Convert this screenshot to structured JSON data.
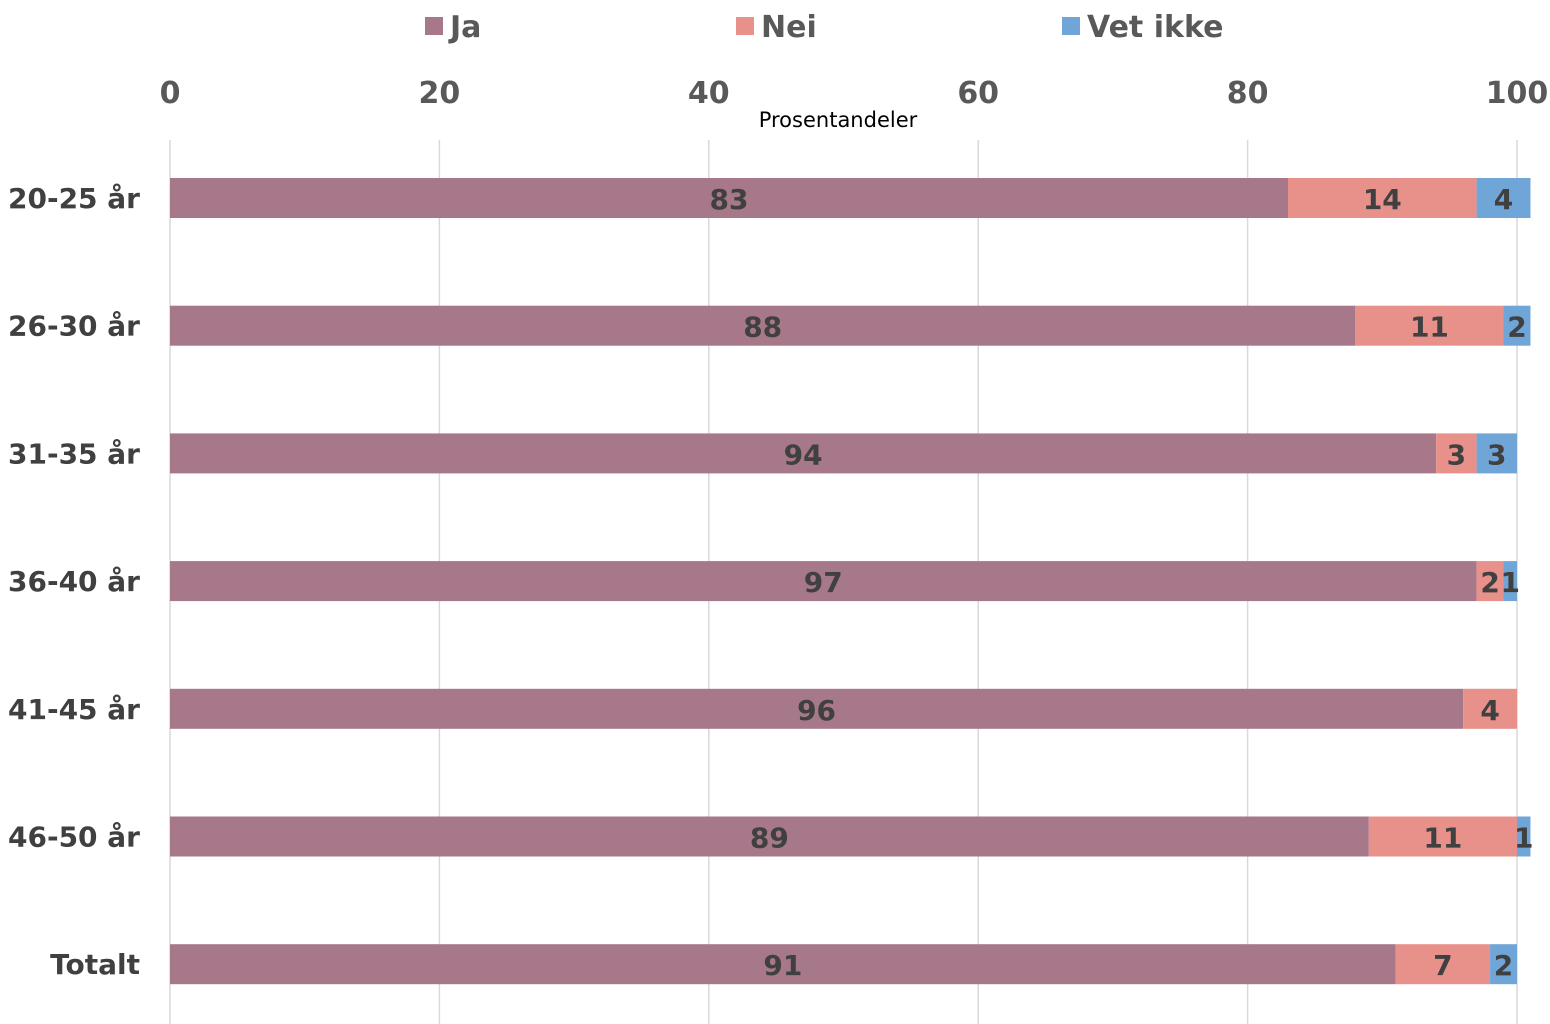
{
  "chart_data": {
    "type": "bar",
    "orientation": "horizontal",
    "stacked": true,
    "categories": [
      "20-25 år",
      "26-30 år",
      "31-35 år",
      "36-40 år",
      "41-45 år",
      "46-50 år",
      "Totalt"
    ],
    "series": [
      {
        "name": "Ja",
        "color": "#a67889",
        "values": [
          83,
          88,
          94,
          97,
          96,
          89,
          91
        ]
      },
      {
        "name": "Nei",
        "color": "#e8908a",
        "values": [
          14,
          11,
          3,
          2,
          4,
          11,
          7
        ]
      },
      {
        "name": "Vet ikke",
        "color": "#70a5d8",
        "values": [
          4,
          2,
          3,
          1,
          null,
          1,
          2
        ]
      }
    ],
    "xlabel": "Prosentandeler",
    "ylabel": "",
    "xlim": [
      0,
      100
    ],
    "xticks": [
      0,
      20,
      40,
      60,
      80,
      100
    ],
    "grid": true,
    "legend_position": "top",
    "axis_position": "top"
  }
}
